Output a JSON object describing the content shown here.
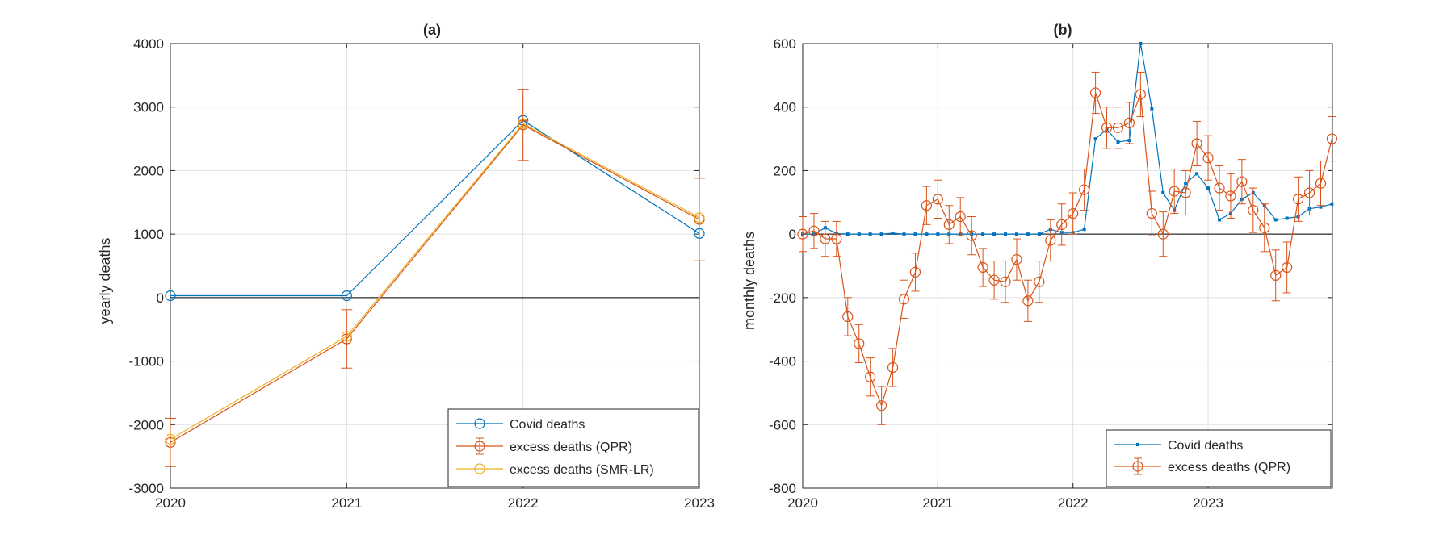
{
  "colors": {
    "covid": "#0072BD",
    "qpr": "#D95319",
    "smr": "#EDB120",
    "grid": "#dfdfdf",
    "axis": "#262626"
  },
  "chart_data": [
    {
      "type": "line",
      "title": "(a)",
      "xlabel": "",
      "ylabel": "yearly deaths",
      "xlim": [
        2020,
        2023
      ],
      "ylim": [
        -3000,
        4000
      ],
      "xticks": [
        "2020",
        "2021",
        "2022",
        "2023"
      ],
      "yticks": [
        "-3000",
        "-2000",
        "-1000",
        "0",
        "1000",
        "2000",
        "3000",
        "4000"
      ],
      "grid": true,
      "legend_position": "bottom-right",
      "series": [
        {
          "name": "Covid deaths",
          "color": "#0072BD",
          "marker": "circle",
          "x": [
            2020,
            2021,
            2022,
            2023
          ],
          "y": [
            30,
            30,
            2790,
            1010
          ]
        },
        {
          "name": "excess deaths (QPR)",
          "color": "#D95319",
          "marker": "circle",
          "x": [
            2020,
            2021,
            2022,
            2023
          ],
          "y": [
            -2280,
            -650,
            2720,
            1230
          ],
          "err": [
            380,
            460,
            560,
            650
          ]
        },
        {
          "name": "excess deaths (SMR-LR)",
          "color": "#EDB120",
          "marker": "circle",
          "x": [
            2020,
            2021,
            2022,
            2023
          ],
          "y": [
            -2230,
            -610,
            2740,
            1260
          ]
        }
      ]
    },
    {
      "type": "line",
      "title": "(b)",
      "xlabel": "",
      "ylabel": "monthly deaths",
      "xlim": [
        2020,
        2023.92
      ],
      "ylim": [
        -800,
        600
      ],
      "xticks": [
        "2020",
        "2021",
        "2022",
        "2023"
      ],
      "yticks": [
        "-800",
        "-600",
        "-400",
        "-200",
        "0",
        "200",
        "400",
        "600"
      ],
      "grid": true,
      "legend_position": "bottom-right",
      "series": [
        {
          "name": "Covid deaths",
          "color": "#0072BD",
          "marker": "point",
          "y": [
            0,
            0,
            20,
            2,
            0,
            0,
            0,
            0,
            3,
            0,
            0,
            0,
            0,
            0,
            0,
            0,
            0,
            0,
            0,
            0,
            0,
            0,
            15,
            5,
            5,
            15,
            300,
            330,
            290,
            295,
            600,
            395,
            130,
            75,
            160,
            190,
            145,
            45,
            65,
            110,
            130,
            90,
            45,
            50,
            55,
            80,
            85,
            95
          ]
        },
        {
          "name": "excess deaths (QPR)",
          "color": "#D95319",
          "marker": "circle",
          "y": [
            0,
            10,
            -15,
            -15,
            -260,
            -345,
            -450,
            -540,
            -420,
            -205,
            -120,
            90,
            110,
            30,
            55,
            -5,
            -105,
            -145,
            -150,
            -80,
            -210,
            -150,
            -20,
            30,
            65,
            140,
            445,
            335,
            335,
            350,
            440,
            65,
            0,
            135,
            130,
            285,
            240,
            145,
            120,
            165,
            75,
            20,
            -130,
            -105,
            110,
            130,
            160,
            300
          ],
          "err": [
            55,
            55,
            55,
            55,
            60,
            60,
            60,
            60,
            60,
            60,
            60,
            60,
            60,
            60,
            60,
            60,
            60,
            60,
            65,
            65,
            65,
            65,
            65,
            65,
            65,
            65,
            65,
            65,
            65,
            65,
            70,
            70,
            70,
            70,
            70,
            70,
            70,
            70,
            70,
            70,
            70,
            75,
            80,
            80,
            70,
            70,
            70,
            70
          ]
        }
      ]
    }
  ]
}
